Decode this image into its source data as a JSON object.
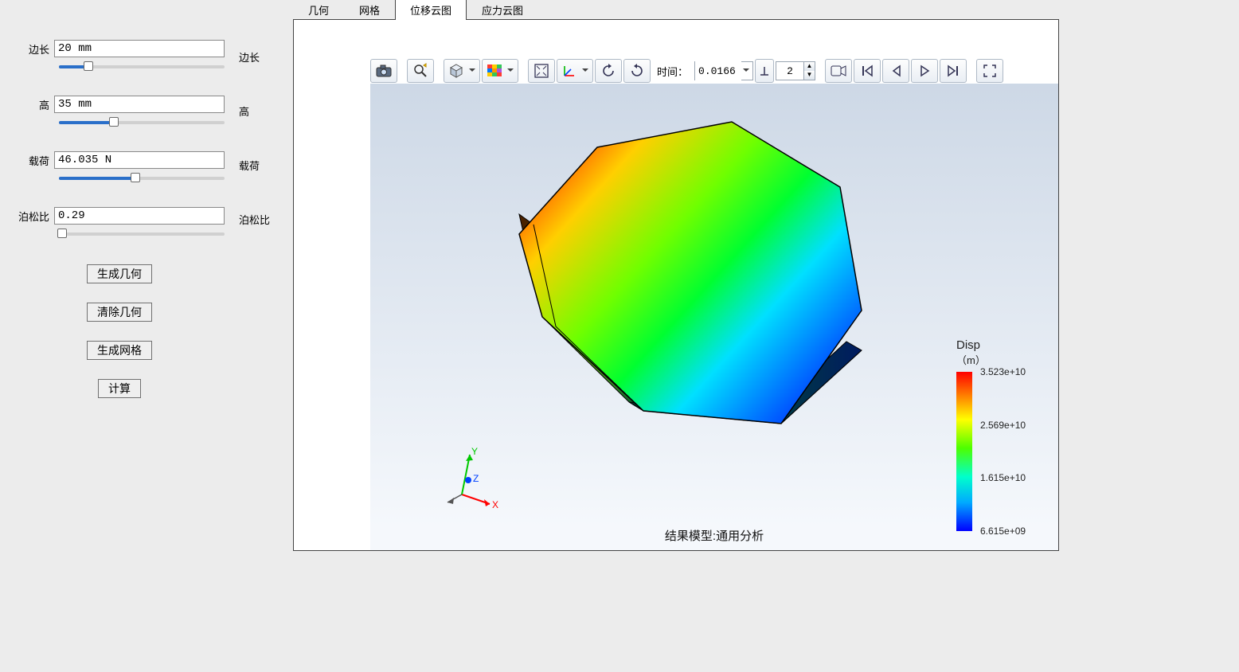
{
  "params": {
    "edge": {
      "label": "边长",
      "value": "20 mm",
      "slider_pct": 18
    },
    "height": {
      "label": "高",
      "value": "35 mm",
      "slider_pct": 33
    },
    "load": {
      "label": "载荷",
      "value": "46.035 N",
      "slider_pct": 46
    },
    "poisson": {
      "label": "泊松比",
      "value": "0.29",
      "slider_pct": 2
    }
  },
  "side_labels": {
    "edge": "边长",
    "height": "高",
    "load": "载荷",
    "poisson": "泊松比"
  },
  "buttons": {
    "gen_geom": "生成几何",
    "clear_geom": "清除几何",
    "gen_mesh": "生成网格",
    "compute": "计算"
  },
  "tabs": {
    "geom": "几何",
    "mesh": "网格",
    "disp": "位移云图",
    "stress": "应力云图",
    "active": "disp"
  },
  "toolbar": {
    "time_label": "时间：",
    "time_value": "0.0166",
    "frame_value": "2"
  },
  "result_title": "结果模型:通用分析",
  "legend": {
    "title": "Disp",
    "subtitle": "（m）",
    "bar_gradient_colors": [
      "#ff0000",
      "#ff9900",
      "#ffff00",
      "#4dff00",
      "#00ffcc",
      "#00aaff",
      "#0000ff"
    ],
    "ticks": [
      {
        "pct": 0,
        "label": "3.523e+10"
      },
      {
        "pct": 33.3,
        "label": "2.569e+10"
      },
      {
        "pct": 66.6,
        "label": "1.615e+10"
      },
      {
        "pct": 100,
        "label": "6.615e+09"
      }
    ]
  },
  "triad": {
    "x_label": "X",
    "y_label": "Y",
    "z_label": "Z",
    "x_color": "#ff0000",
    "y_color": "#00c800",
    "z_color": "#0040ff"
  },
  "model": {
    "type": "3d-extruded-heptagon-contour",
    "face_gradient_colors": [
      "#7a0000",
      "#ff2a00",
      "#ffcf00",
      "#6fff00",
      "#00ff7a",
      "#00d0ff",
      "#0030ff"
    ],
    "edge_color": "#000000",
    "extrude_color_dark": "#1a1a1a",
    "background": "#cdd8e6"
  }
}
